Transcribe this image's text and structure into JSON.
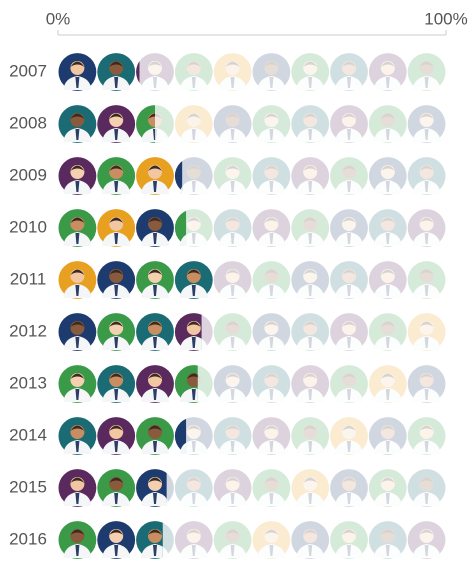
{
  "chart_data": {
    "type": "pictogram",
    "categories": [
      "2007",
      "2008",
      "2009",
      "2010",
      "2011",
      "2012",
      "2013",
      "2014",
      "2015",
      "2016"
    ],
    "values": [
      21,
      25,
      32,
      33,
      40,
      37,
      36,
      33,
      28,
      27
    ],
    "xlim": [
      0,
      100
    ],
    "xticks": [
      {
        "value": 0,
        "label": "0%"
      },
      {
        "value": 100,
        "label": "100%"
      }
    ]
  }
}
